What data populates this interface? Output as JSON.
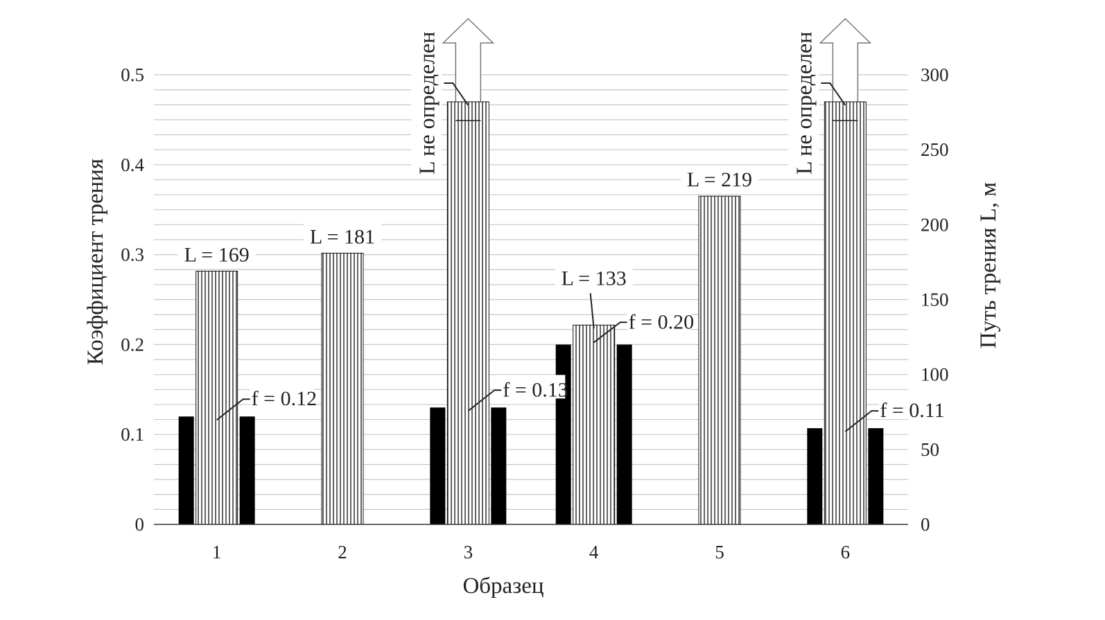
{
  "chart_data": {
    "type": "bar",
    "title": "",
    "xlabel": "Образец",
    "ylabel": "Коэффициент трения",
    "y2label": "Путь трения L, м",
    "categories": [
      "1",
      "2",
      "3",
      "4",
      "5",
      "6"
    ],
    "ylim": [
      0,
      0.5
    ],
    "y2lim": [
      0,
      300
    ],
    "yticks": [
      "0",
      "0.1",
      "0.2",
      "0.3",
      "0.4",
      "0.5"
    ],
    "y2ticks": [
      "0",
      "50",
      "100",
      "150",
      "200",
      "250",
      "300"
    ],
    "grid": true,
    "series": [
      {
        "name": "f",
        "axis": "left",
        "style": "black",
        "values": [
          0.12,
          null,
          0.13,
          0.2,
          null,
          0.107
        ]
      },
      {
        "name": "L",
        "axis": "right",
        "style": "vertical-hatch",
        "values": [
          169,
          181,
          282,
          133,
          219,
          282
        ]
      }
    ],
    "f_labels": [
      "f = 0.12",
      null,
      "f = 0.13",
      "f = 0.20",
      null,
      "f = 0.11"
    ],
    "L_labels": [
      "L = 169",
      "L = 181",
      null,
      "L = 133",
      "L = 219",
      null
    ],
    "undetermined": [
      false,
      false,
      true,
      false,
      false,
      true
    ],
    "undetermined_label": "L не определен"
  }
}
